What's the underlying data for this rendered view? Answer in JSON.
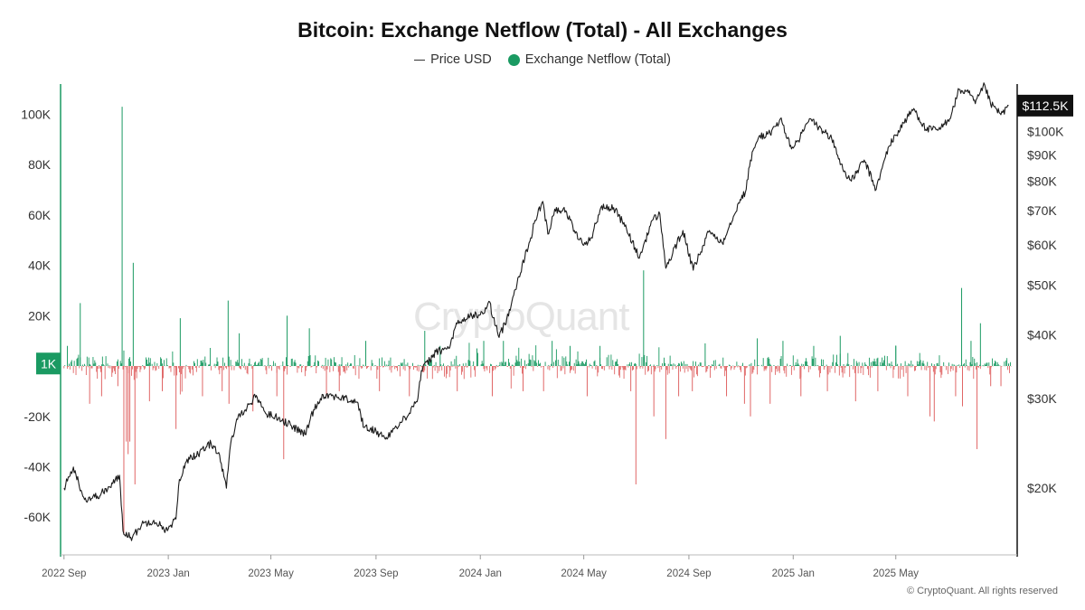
{
  "colors": {
    "inflow": "#1a9a62",
    "outflow": "#e06666",
    "price_line": "#1b1b1b",
    "badge_left": "#1a9a62",
    "badge_right": "#111111"
  },
  "copyright": "© CryptoQuant. All rights reserved",
  "watermark": "CryptoQuant",
  "chart_data": {
    "type": "bar+line",
    "title": "Bitcoin: Exchange Netflow (Total) - All Exchanges",
    "legend": [
      {
        "name": "Price USD",
        "marker": "line"
      },
      {
        "name": "Exchange Netflow (Total)",
        "marker": "dot"
      }
    ],
    "legend_position": "top-center",
    "grid": false,
    "x_axis": {
      "range": [
        "2022-08-28",
        "2025-09-20"
      ],
      "ticks": [
        {
          "date": "2022-09-01",
          "label": "2022 Sep"
        },
        {
          "date": "2023-01-01",
          "label": "2023 Jan"
        },
        {
          "date": "2023-05-01",
          "label": "2023 May"
        },
        {
          "date": "2023-09-01",
          "label": "2023 Sep"
        },
        {
          "date": "2024-01-01",
          "label": "2024 Jan"
        },
        {
          "date": "2024-05-01",
          "label": "2024 May"
        },
        {
          "date": "2024-09-01",
          "label": "2024 Sep"
        },
        {
          "date": "2025-01-01",
          "label": "2025 Jan"
        },
        {
          "date": "2025-05-01",
          "label": "2025 May"
        }
      ]
    },
    "y_left": {
      "range": [
        -75000,
        112000
      ],
      "ticks": [
        {
          "value": 100000,
          "label": "100K"
        },
        {
          "value": 80000,
          "label": "80K"
        },
        {
          "value": 60000,
          "label": "60K"
        },
        {
          "value": 40000,
          "label": "40K"
        },
        {
          "value": 20000,
          "label": "20K"
        },
        {
          "value": -20000,
          "label": "-20K"
        },
        {
          "value": -40000,
          "label": "-40K"
        },
        {
          "value": -60000,
          "label": "-60K"
        }
      ],
      "current": {
        "value": 1000,
        "label": "1K"
      }
    },
    "y_right": {
      "scale": "log",
      "range": [
        14800,
        124000
      ],
      "ticks": [
        {
          "value": 100000,
          "label": "$100K"
        },
        {
          "value": 90000,
          "label": "$90K"
        },
        {
          "value": 80000,
          "label": "$80K"
        },
        {
          "value": 70000,
          "label": "$70K"
        },
        {
          "value": 60000,
          "label": "$60K"
        },
        {
          "value": 50000,
          "label": "$50K"
        },
        {
          "value": 40000,
          "label": "$40K"
        },
        {
          "value": 30000,
          "label": "$30K"
        },
        {
          "value": 20000,
          "label": "$20K"
        }
      ],
      "current": {
        "value": 112500,
        "label": "$112.5K"
      }
    },
    "price_series": {
      "name": "Price USD",
      "points": [
        [
          "2022-09-01",
          20000
        ],
        [
          "2022-09-12",
          22000
        ],
        [
          "2022-09-25",
          19000
        ],
        [
          "2022-10-10",
          19300
        ],
        [
          "2022-10-25",
          20100
        ],
        [
          "2022-11-05",
          21200
        ],
        [
          "2022-11-09",
          16500
        ],
        [
          "2022-11-20",
          16000
        ],
        [
          "2022-12-01",
          17000
        ],
        [
          "2022-12-15",
          17300
        ],
        [
          "2022-12-31",
          16500
        ],
        [
          "2023-01-10",
          17400
        ],
        [
          "2023-01-14",
          20800
        ],
        [
          "2023-01-25",
          23000
        ],
        [
          "2023-02-05",
          23300
        ],
        [
          "2023-02-20",
          24500
        ],
        [
          "2023-03-01",
          23500
        ],
        [
          "2023-03-10",
          20000
        ],
        [
          "2023-03-15",
          24500
        ],
        [
          "2023-03-25",
          28000
        ],
        [
          "2023-04-01",
          28500
        ],
        [
          "2023-04-14",
          30400
        ],
        [
          "2023-04-25",
          28000
        ],
        [
          "2023-05-10",
          27500
        ],
        [
          "2023-05-25",
          26500
        ],
        [
          "2023-06-10",
          25500
        ],
        [
          "2023-06-20",
          28500
        ],
        [
          "2023-07-01",
          30500
        ],
        [
          "2023-07-15",
          30300
        ],
        [
          "2023-08-10",
          29500
        ],
        [
          "2023-08-18",
          26300
        ],
        [
          "2023-09-01",
          25900
        ],
        [
          "2023-09-11",
          25100
        ],
        [
          "2023-09-25",
          26300
        ],
        [
          "2023-10-05",
          27500
        ],
        [
          "2023-10-20",
          30000
        ],
        [
          "2023-10-24",
          34000
        ],
        [
          "2023-11-10",
          37000
        ],
        [
          "2023-11-25",
          37600
        ],
        [
          "2023-12-05",
          42000
        ],
        [
          "2023-12-20",
          43500
        ],
        [
          "2024-01-05",
          44000
        ],
        [
          "2024-01-11",
          46500
        ],
        [
          "2024-01-23",
          39500
        ],
        [
          "2024-02-01",
          43000
        ],
        [
          "2024-02-15",
          52000
        ],
        [
          "2024-02-28",
          61000
        ],
        [
          "2024-03-05",
          67000
        ],
        [
          "2024-03-14",
          73000
        ],
        [
          "2024-03-20",
          63000
        ],
        [
          "2024-03-28",
          70500
        ],
        [
          "2024-04-10",
          70000
        ],
        [
          "2024-04-20",
          64000
        ],
        [
          "2024-04-30",
          60000
        ],
        [
          "2024-05-10",
          62000
        ],
        [
          "2024-05-21",
          71000
        ],
        [
          "2024-06-05",
          71000
        ],
        [
          "2024-06-20",
          64500
        ],
        [
          "2024-07-05",
          56500
        ],
        [
          "2024-07-20",
          67000
        ],
        [
          "2024-07-29",
          69000
        ],
        [
          "2024-08-05",
          54000
        ],
        [
          "2024-08-25",
          64000
        ],
        [
          "2024-09-06",
          53500
        ],
        [
          "2024-09-25",
          64000
        ],
        [
          "2024-10-10",
          60500
        ],
        [
          "2024-10-29",
          72500
        ],
        [
          "2024-11-06",
          76000
        ],
        [
          "2024-11-12",
          88000
        ],
        [
          "2024-11-22",
          98000
        ],
        [
          "2024-12-05",
          99000
        ],
        [
          "2024-12-17",
          106000
        ],
        [
          "2024-12-30",
          92500
        ],
        [
          "2025-01-07",
          96000
        ],
        [
          "2025-01-20",
          106000
        ],
        [
          "2025-01-31",
          102000
        ],
        [
          "2025-02-15",
          97000
        ],
        [
          "2025-02-28",
          84500
        ],
        [
          "2025-03-10",
          80000
        ],
        [
          "2025-03-25",
          88000
        ],
        [
          "2025-04-08",
          77000
        ],
        [
          "2025-04-22",
          93000
        ],
        [
          "2025-05-10",
          104000
        ],
        [
          "2025-05-22",
          111000
        ],
        [
          "2025-06-05",
          101000
        ],
        [
          "2025-06-22",
          101000
        ],
        [
          "2025-07-05",
          108000
        ],
        [
          "2025-07-14",
          121000
        ],
        [
          "2025-07-28",
          118000
        ],
        [
          "2025-08-02",
          113500
        ],
        [
          "2025-08-13",
          123500
        ],
        [
          "2025-08-20",
          113000
        ],
        [
          "2025-08-26",
          111000
        ],
        [
          "2025-09-01",
          108000
        ],
        [
          "2025-09-10",
          112500
        ]
      ]
    },
    "netflow_series": {
      "name": "Exchange Netflow (Total)",
      "spikes": [
        [
          "2022-09-05",
          8000
        ],
        [
          "2022-09-20",
          25000
        ],
        [
          "2022-10-01",
          -15000
        ],
        [
          "2022-10-15",
          -12000
        ],
        [
          "2022-11-03",
          -8000
        ],
        [
          "2022-11-08",
          103000
        ],
        [
          "2022-11-10",
          -67000
        ],
        [
          "2022-11-13",
          -30000
        ],
        [
          "2022-11-15",
          -35000
        ],
        [
          "2022-11-17",
          -30000
        ],
        [
          "2022-11-21",
          41000
        ],
        [
          "2022-11-23",
          -47000
        ],
        [
          "2022-12-10",
          -14000
        ],
        [
          "2022-12-25",
          -10000
        ],
        [
          "2023-01-10",
          -25000
        ],
        [
          "2023-01-15",
          19000
        ],
        [
          "2023-02-10",
          -12000
        ],
        [
          "2023-03-05",
          -10000
        ],
        [
          "2023-03-12",
          26000
        ],
        [
          "2023-03-13",
          -15000
        ],
        [
          "2023-03-25",
          13000
        ],
        [
          "2023-04-10",
          -18000
        ],
        [
          "2023-05-08",
          -12000
        ],
        [
          "2023-05-16",
          -37000
        ],
        [
          "2023-05-20",
          20000
        ],
        [
          "2023-06-15",
          15000
        ],
        [
          "2023-07-05",
          -12000
        ],
        [
          "2023-07-20",
          -10000
        ],
        [
          "2023-08-20",
          10000
        ],
        [
          "2023-09-05",
          -10000
        ],
        [
          "2023-10-10",
          -12000
        ],
        [
          "2023-10-28",
          14000
        ],
        [
          "2023-11-15",
          8000
        ],
        [
          "2023-12-05",
          -10000
        ],
        [
          "2023-12-28",
          7000
        ],
        [
          "2024-01-05",
          10000
        ],
        [
          "2024-01-15",
          -12000
        ],
        [
          "2024-01-28",
          10000
        ],
        [
          "2024-02-20",
          -10000
        ],
        [
          "2024-03-15",
          -10000
        ],
        [
          "2024-03-25",
          10000
        ],
        [
          "2024-04-15",
          8000
        ],
        [
          "2024-05-05",
          -12000
        ],
        [
          "2024-05-20",
          8000
        ],
        [
          "2024-06-25",
          -10000
        ],
        [
          "2024-07-01",
          -47000
        ],
        [
          "2024-07-10",
          38000
        ],
        [
          "2024-07-22",
          -20000
        ],
        [
          "2024-08-05",
          -29000
        ],
        [
          "2024-08-20",
          -12000
        ],
        [
          "2024-09-05",
          -10000
        ],
        [
          "2024-09-20",
          9000
        ],
        [
          "2024-10-15",
          -12000
        ],
        [
          "2024-11-05",
          -15000
        ],
        [
          "2024-11-12",
          -20000
        ],
        [
          "2024-11-20",
          11000
        ],
        [
          "2024-12-05",
          -15000
        ],
        [
          "2024-12-20",
          10000
        ],
        [
          "2025-01-10",
          -12000
        ],
        [
          "2025-01-25",
          8000
        ],
        [
          "2025-02-10",
          -10000
        ],
        [
          "2025-02-25",
          12000
        ],
        [
          "2025-03-15",
          -14000
        ],
        [
          "2025-04-10",
          -10000
        ],
        [
          "2025-05-01",
          8000
        ],
        [
          "2025-05-15",
          -12000
        ],
        [
          "2025-06-10",
          -20000
        ],
        [
          "2025-06-15",
          -22000
        ],
        [
          "2025-07-10",
          -12000
        ],
        [
          "2025-07-17",
          31000
        ],
        [
          "2025-07-18",
          -16000
        ],
        [
          "2025-07-28",
          10000
        ],
        [
          "2025-08-04",
          -33000
        ],
        [
          "2025-08-08",
          17000
        ],
        [
          "2025-08-20",
          -8000
        ],
        [
          "2025-09-01",
          -8000
        ],
        [
          "2025-09-10",
          1000
        ]
      ]
    }
  }
}
